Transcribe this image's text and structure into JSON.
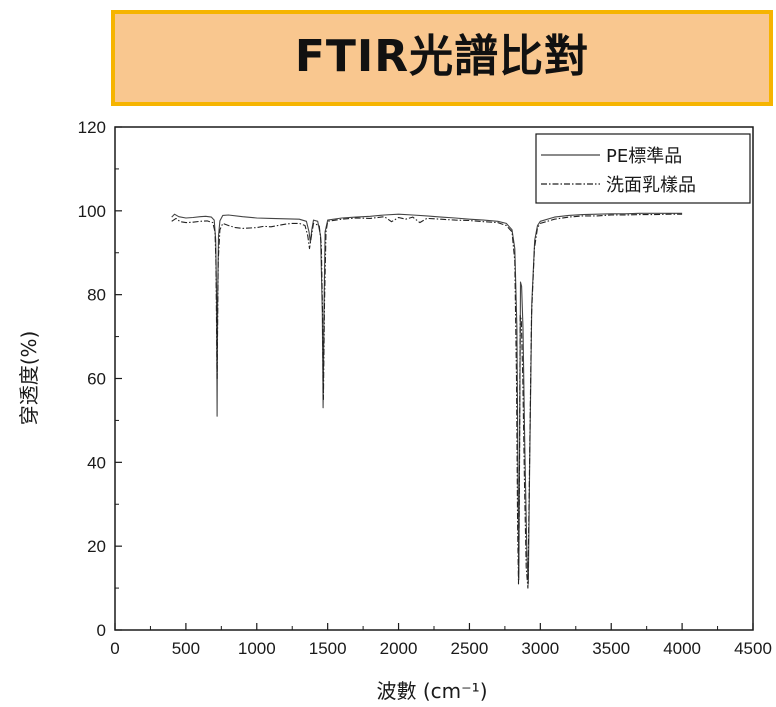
{
  "banner": {
    "title": "FTIR光譜比對"
  },
  "chart_data": {
    "type": "line",
    "title": "FTIR光譜比對",
    "xlabel": "波數 (cm⁻¹)",
    "ylabel": "穿透度(%)",
    "xlim": [
      0,
      4500
    ],
    "ylim": [
      0,
      120
    ],
    "xticks": [
      0,
      500,
      1000,
      1500,
      2000,
      2500,
      3000,
      3500,
      4000,
      4500
    ],
    "yticks": [
      0,
      20,
      40,
      60,
      80,
      100,
      120
    ],
    "grid": false,
    "legend": "top-right",
    "series": [
      {
        "name": "PE標準品",
        "style": "solid",
        "color": "#444444",
        "points": [
          [
            400,
            98.5
          ],
          [
            420,
            99.2
          ],
          [
            450,
            98.6
          ],
          [
            500,
            98.3
          ],
          [
            550,
            98.4
          ],
          [
            600,
            98.6
          ],
          [
            640,
            98.7
          ],
          [
            680,
            98.5
          ],
          [
            700,
            97.8
          ],
          [
            710,
            93.0
          ],
          [
            716,
            80.0
          ],
          [
            720,
            51.0
          ],
          [
            724,
            78.0
          ],
          [
            730,
            94.0
          ],
          [
            740,
            97.6
          ],
          [
            760,
            98.9
          ],
          [
            800,
            99.0
          ],
          [
            900,
            98.6
          ],
          [
            1000,
            98.3
          ],
          [
            1100,
            98.2
          ],
          [
            1200,
            98.1
          ],
          [
            1300,
            98.0
          ],
          [
            1350,
            97.5
          ],
          [
            1368,
            95.0
          ],
          [
            1378,
            92.5
          ],
          [
            1388,
            95.5
          ],
          [
            1400,
            97.8
          ],
          [
            1430,
            97.5
          ],
          [
            1450,
            94.0
          ],
          [
            1462,
            76.0
          ],
          [
            1468,
            53.0
          ],
          [
            1474,
            76.0
          ],
          [
            1482,
            95.0
          ],
          [
            1500,
            97.8
          ],
          [
            1600,
            98.3
          ],
          [
            1700,
            98.5
          ],
          [
            1800,
            98.7
          ],
          [
            1900,
            99.0
          ],
          [
            2000,
            99.2
          ],
          [
            2100,
            99.0
          ],
          [
            2200,
            98.8
          ],
          [
            2300,
            98.5
          ],
          [
            2400,
            98.3
          ],
          [
            2500,
            98.0
          ],
          [
            2600,
            97.8
          ],
          [
            2700,
            97.5
          ],
          [
            2760,
            97.0
          ],
          [
            2800,
            95.5
          ],
          [
            2820,
            91.0
          ],
          [
            2835,
            72.0
          ],
          [
            2842,
            40.0
          ],
          [
            2848,
            12.0
          ],
          [
            2853,
            40.0
          ],
          [
            2860,
            83.0
          ],
          [
            2868,
            82.0
          ],
          [
            2878,
            72.0
          ],
          [
            2890,
            45.0
          ],
          [
            2905,
            18.0
          ],
          [
            2915,
            11.0
          ],
          [
            2925,
            40.0
          ],
          [
            2940,
            78.0
          ],
          [
            2960,
            93.0
          ],
          [
            2980,
            96.5
          ],
          [
            3000,
            97.5
          ],
          [
            3100,
            98.5
          ],
          [
            3200,
            98.9
          ],
          [
            3300,
            99.1
          ],
          [
            3400,
            99.2
          ],
          [
            3500,
            99.3
          ],
          [
            3600,
            99.3
          ],
          [
            3700,
            99.4
          ],
          [
            3800,
            99.4
          ],
          [
            3900,
            99.4
          ],
          [
            4000,
            99.4
          ]
        ]
      },
      {
        "name": "洗面乳樣品",
        "style": "dashdot",
        "color": "#222222",
        "points": [
          [
            400,
            97.5
          ],
          [
            430,
            98.2
          ],
          [
            460,
            97.4
          ],
          [
            500,
            97.2
          ],
          [
            550,
            97.3
          ],
          [
            600,
            97.5
          ],
          [
            650,
            97.6
          ],
          [
            690,
            97.2
          ],
          [
            705,
            95.0
          ],
          [
            712,
            88.0
          ],
          [
            720,
            60.0
          ],
          [
            728,
            88.0
          ],
          [
            740,
            95.5
          ],
          [
            760,
            97.0
          ],
          [
            800,
            96.5
          ],
          [
            850,
            96.0
          ],
          [
            900,
            95.8
          ],
          [
            1000,
            96.0
          ],
          [
            1050,
            96.3
          ],
          [
            1100,
            96.2
          ],
          [
            1150,
            96.5
          ],
          [
            1200,
            96.8
          ],
          [
            1250,
            97.0
          ],
          [
            1300,
            97.0
          ],
          [
            1340,
            96.5
          ],
          [
            1360,
            94.0
          ],
          [
            1372,
            91.0
          ],
          [
            1385,
            94.0
          ],
          [
            1400,
            97.0
          ],
          [
            1440,
            96.5
          ],
          [
            1455,
            92.0
          ],
          [
            1464,
            75.0
          ],
          [
            1470,
            55.0
          ],
          [
            1478,
            78.0
          ],
          [
            1488,
            95.0
          ],
          [
            1500,
            97.5
          ],
          [
            1600,
            98.0
          ],
          [
            1700,
            98.3
          ],
          [
            1800,
            98.2
          ],
          [
            1900,
            98.6
          ],
          [
            1950,
            97.4
          ],
          [
            2000,
            98.4
          ],
          [
            2050,
            98.0
          ],
          [
            2100,
            98.5
          ],
          [
            2150,
            97.2
          ],
          [
            2200,
            98.2
          ],
          [
            2300,
            98.0
          ],
          [
            2400,
            97.8
          ],
          [
            2500,
            97.7
          ],
          [
            2600,
            97.4
          ],
          [
            2700,
            97.2
          ],
          [
            2760,
            96.5
          ],
          [
            2800,
            95.0
          ],
          [
            2820,
            88.0
          ],
          [
            2832,
            60.0
          ],
          [
            2840,
            25.0
          ],
          [
            2846,
            11.0
          ],
          [
            2852,
            35.0
          ],
          [
            2858,
            75.0
          ],
          [
            2866,
            74.0
          ],
          [
            2876,
            60.0
          ],
          [
            2888,
            35.0
          ],
          [
            2900,
            15.0
          ],
          [
            2912,
            10.0
          ],
          [
            2922,
            35.0
          ],
          [
            2938,
            75.0
          ],
          [
            2958,
            91.0
          ],
          [
            2980,
            96.0
          ],
          [
            3000,
            97.0
          ],
          [
            3100,
            98.0
          ],
          [
            3200,
            98.5
          ],
          [
            3300,
            98.8
          ],
          [
            3400,
            98.8
          ],
          [
            3500,
            99.0
          ],
          [
            3600,
            99.0
          ],
          [
            3700,
            99.1
          ],
          [
            3800,
            99.1
          ],
          [
            3900,
            99.2
          ],
          [
            4000,
            99.2
          ]
        ]
      }
    ]
  }
}
